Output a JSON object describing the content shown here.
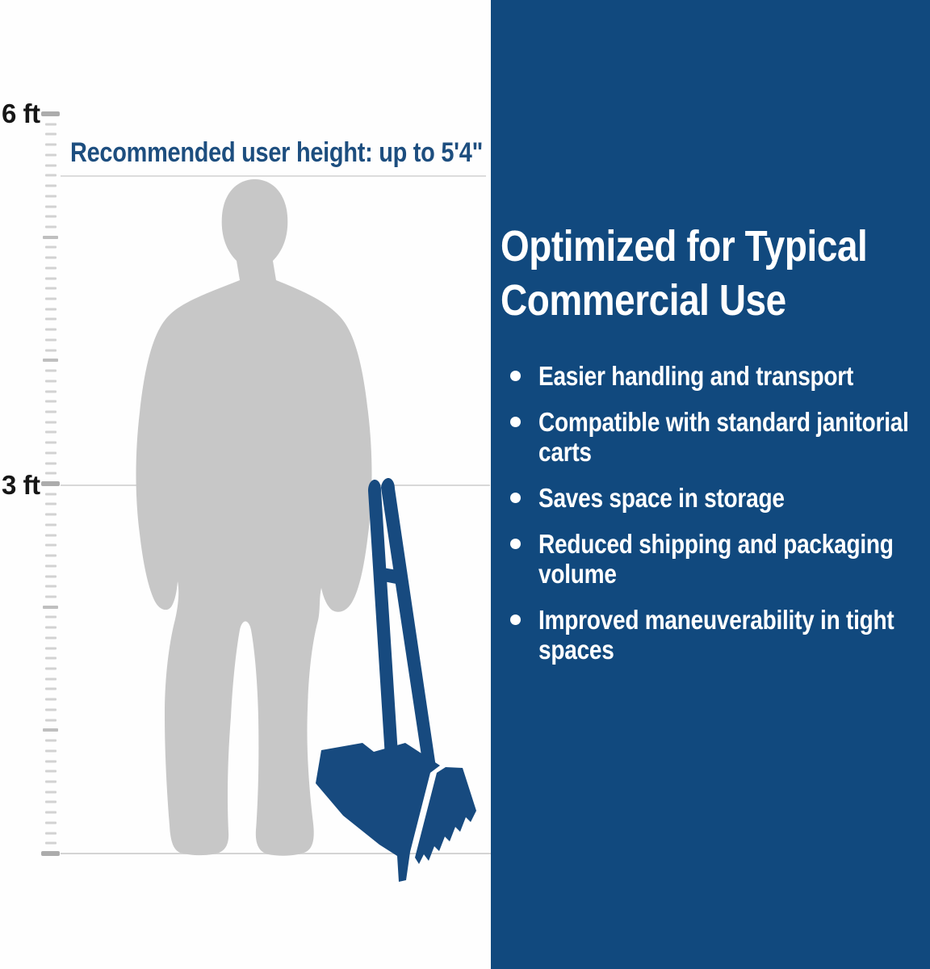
{
  "left_panel": {
    "ruler": {
      "labels": [
        {
          "text": "6 ft"
        },
        {
          "text": "3 ft"
        }
      ],
      "feet_span": 6,
      "minor_tick_unit": "inch"
    },
    "recommendation": "Recommended user height: up to 5'4\"",
    "silhouette_icon": "standing-person-silhouette",
    "product_icon": "lobby-dustpan-with-broom"
  },
  "right_panel": {
    "title_lines": [
      "Optimized for Typical",
      "Commercial Use"
    ],
    "bullet_icon": "dot",
    "bullets": [
      "Easier handling and transport",
      "Compatible with standard janitorial carts",
      "Saves space in storage",
      "Reduced shipping and packaging volume",
      "Improved maneuverability in tight spaces"
    ]
  },
  "colors": {
    "panel_blue": "#11497e",
    "product_blue": "#174a7f",
    "silhouette_gray": "#c7c7c7",
    "accent_text_blue": "#1d4e7f",
    "tick_gray": "#d2d2d2"
  }
}
